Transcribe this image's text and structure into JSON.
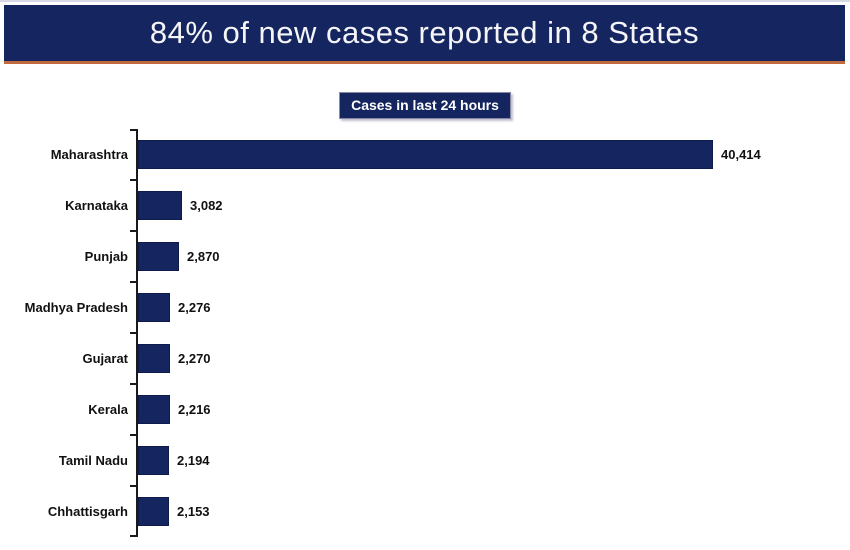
{
  "header": {
    "title": "84% of new cases reported in 8 States",
    "bg_color": "#152560",
    "underline_color": "#c06a3e",
    "text_color": "#f5f5f8"
  },
  "chart_data": {
    "type": "bar",
    "orientation": "horizontal",
    "title": "Cases in last 24 hours",
    "categories": [
      "Maharashtra",
      "Karnataka",
      "Punjab",
      "Madhya Pradesh",
      "Gujarat",
      "Kerala",
      "Tamil Nadu",
      "Chhattisgarh"
    ],
    "values": [
      40414,
      3082,
      2870,
      2276,
      2270,
      2216,
      2194,
      2153
    ],
    "value_labels": [
      "40,414",
      "3,082",
      "2,870",
      "2,276",
      "2,270",
      "2,216",
      "2,194",
      "2,153"
    ],
    "bar_color": "#152560",
    "axis_color": "#1a1a1a",
    "xlim": [
      0,
      42000
    ],
    "grid": false,
    "legend": "none"
  }
}
